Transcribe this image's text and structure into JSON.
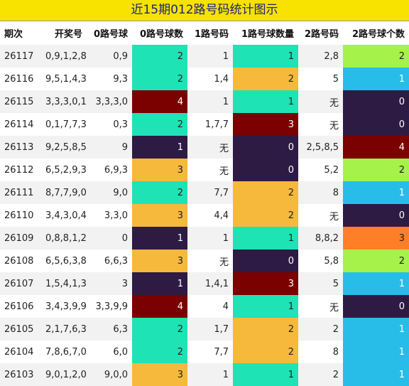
{
  "title": "近15期012路号码统计图示",
  "table": {
    "header": [
      "期次",
      "开奖号",
      "0路号球",
      "0路号球数",
      "1路号码",
      "1路号球数量",
      "2路号码",
      "2路号球个数"
    ],
    "rows": [
      [
        "26117",
        "0,9,1,2,8",
        "0,9",
        2,
        "1",
        1,
        "2,8",
        2
      ],
      [
        "26116",
        "9,5,1,4,3",
        "9,3",
        2,
        "1,4",
        2,
        "5",
        1
      ],
      [
        "26115",
        "3,3,3,0,1",
        "3,3,3,0",
        4,
        "1",
        1,
        "无",
        0
      ],
      [
        "26114",
        "0,1,7,7,3",
        "0,3",
        2,
        "1,7,7",
        3,
        "无",
        0
      ],
      [
        "26113",
        "9,2,5,8,5",
        "9",
        1,
        "无",
        0,
        "2,5,8,5",
        4
      ],
      [
        "26112",
        "6,5,2,9,3",
        "6,9,3",
        3,
        "无",
        0,
        "5,2",
        2
      ],
      [
        "26111",
        "8,7,7,9,0",
        "9,0",
        2,
        "7,7",
        2,
        "8",
        1
      ],
      [
        "26110",
        "3,4,3,0,4",
        "3,3,0",
        3,
        "4,4",
        2,
        "无",
        0
      ],
      [
        "26109",
        "0,8,8,1,2",
        "0",
        1,
        "1",
        1,
        "8,8,2",
        3
      ],
      [
        "26108",
        "6,5,6,3,8",
        "6,6,3",
        3,
        "无",
        0,
        "5,8",
        2
      ],
      [
        "26107",
        "1,5,4,1,3",
        "3",
        1,
        "1,4,1",
        3,
        "5",
        1
      ],
      [
        "26106",
        "3,4,3,9,9",
        "3,3,9,9",
        4,
        "4",
        1,
        "无",
        0
      ],
      [
        "26105",
        "2,1,7,6,3",
        "6,3",
        2,
        "1,7",
        2,
        "2",
        1
      ],
      [
        "26104",
        "7,8,6,7,0",
        "6,0",
        2,
        "7,7",
        2,
        "8",
        1
      ],
      [
        "26103",
        "9,0,1,2,0",
        "9,0,0",
        3,
        "1",
        1,
        "2",
        1
      ]
    ],
    "count_colors": [
      [
        "#1ee3b5",
        "#1ee3b5",
        "#a4f24a"
      ],
      [
        "#1ee3b5",
        "#f6b93b",
        "#28bde9"
      ],
      [
        "#7b0000",
        "#1ee3b5",
        "#2d1b44"
      ],
      [
        "#1ee3b5",
        "#7b0000",
        "#2d1b44"
      ],
      [
        "#2d1b44",
        "#2d1b44",
        "#7b0000"
      ],
      [
        "#f6b93b",
        "#2d1b44",
        "#a4f24a"
      ],
      [
        "#1ee3b5",
        "#f6b93b",
        "#28bde9"
      ],
      [
        "#f6b93b",
        "#f6b93b",
        "#2d1b44"
      ],
      [
        "#2d1b44",
        "#1ee3b5",
        "#ff7f27"
      ],
      [
        "#f6b93b",
        "#2d1b44",
        "#a4f24a"
      ],
      [
        "#2d1b44",
        "#7b0000",
        "#28bde9"
      ],
      [
        "#7b0000",
        "#1ee3b5",
        "#2d1b44"
      ],
      [
        "#1ee3b5",
        "#f6b93b",
        "#28bde9"
      ],
      [
        "#1ee3b5",
        "#f6b93b",
        "#28bde9"
      ],
      [
        "#f6b93b",
        "#1ee3b5",
        "#28bde9"
      ]
    ]
  }
}
